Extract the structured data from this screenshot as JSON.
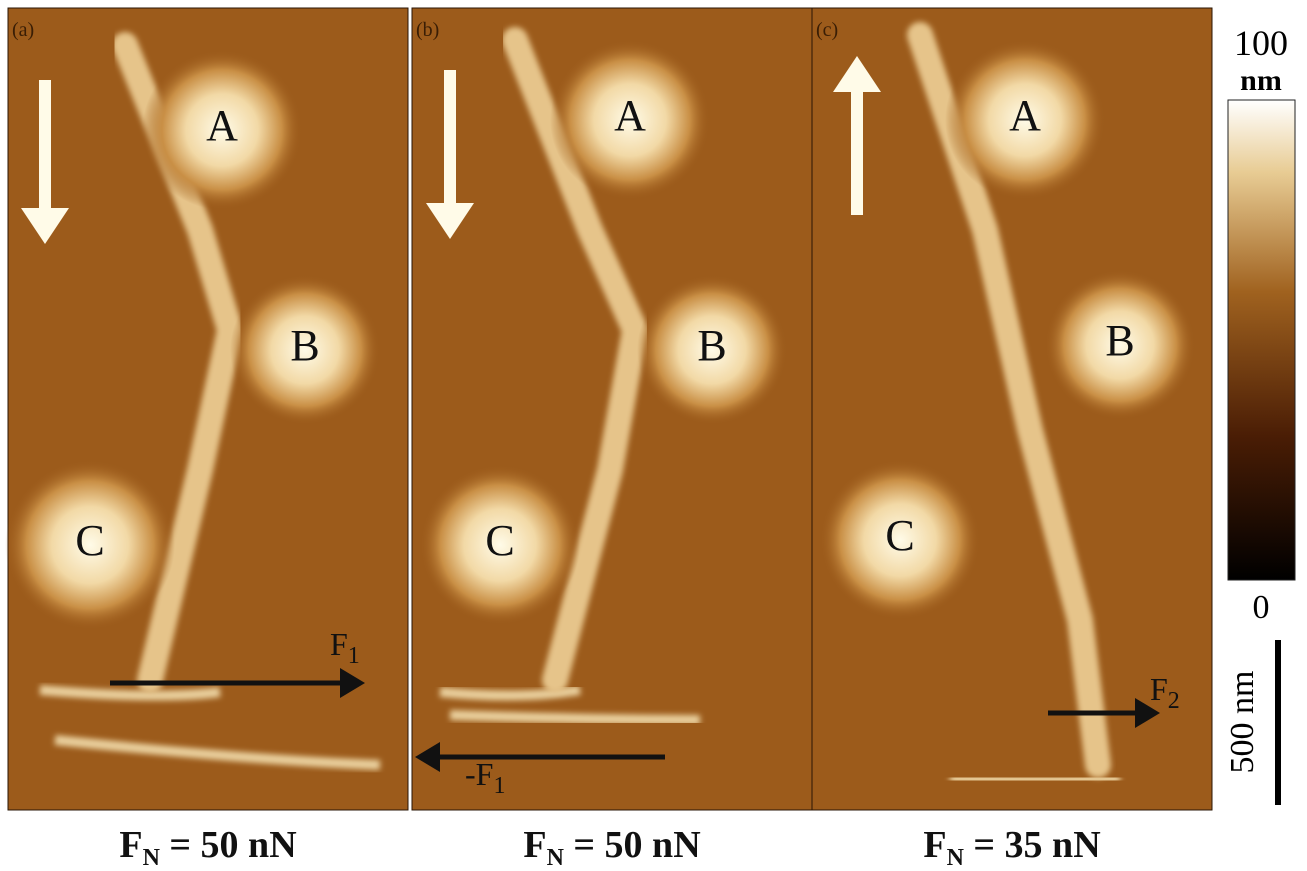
{
  "panels": [
    {
      "label": "(a)",
      "particles": [
        "A",
        "B",
        "C"
      ],
      "force": {
        "main": "F",
        "sub": "1"
      },
      "caption": {
        "main": "F",
        "sub": "N",
        "rest": " = 50 nN"
      }
    },
    {
      "label": "(b)",
      "particles": [
        "A",
        "B",
        "C"
      ],
      "force": {
        "main": "-F",
        "sub": "1"
      },
      "caption": {
        "main": "F",
        "sub": "N",
        "rest": " = 50 nN"
      }
    },
    {
      "label": "(c)",
      "particles": [
        "A",
        "B",
        "C"
      ],
      "force": {
        "main": "F",
        "sub": "2"
      },
      "caption": {
        "main": "F",
        "sub": "N",
        "rest": " = 35 nN"
      }
    }
  ],
  "colorbar": {
    "max": "100",
    "unit": "nm",
    "min": "0"
  },
  "scale_bar": "500 nm"
}
